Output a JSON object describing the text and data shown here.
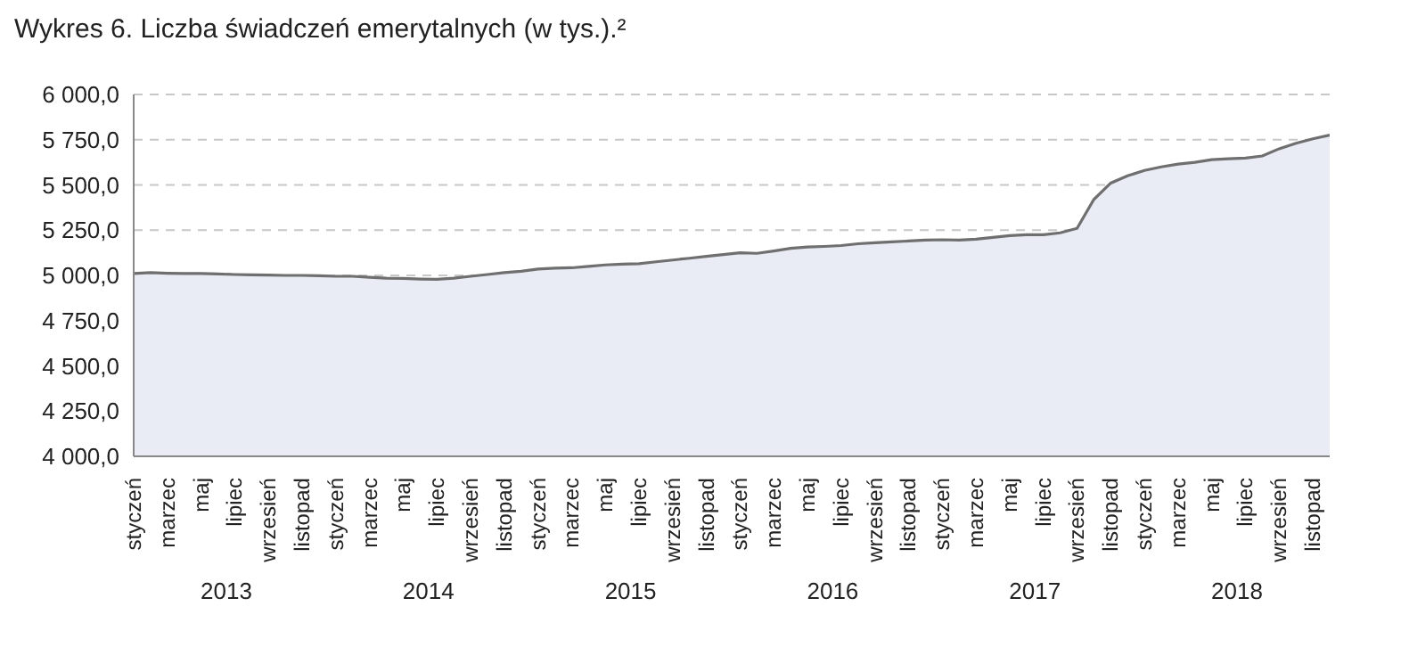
{
  "chart_data": {
    "type": "area",
    "title": "Wykres 6. Liczba świadczeń emerytalnych (w tys.).²",
    "categories": [
      "styczeń",
      null,
      "marzec",
      null,
      "maj",
      null,
      "lipiec",
      null,
      "wrzesień",
      null,
      "listopad",
      null,
      "styczeń",
      null,
      "marzec",
      null,
      "maj",
      null,
      "lipiec",
      null,
      "wrzesień",
      null,
      "listopad",
      null,
      "styczeń",
      null,
      "marzec",
      null,
      "maj",
      null,
      "lipiec",
      null,
      "wrzesień",
      null,
      "listopad",
      null,
      "styczeń",
      null,
      "marzec",
      null,
      "maj",
      null,
      "lipiec",
      null,
      "wrzesień",
      null,
      "listopad",
      null,
      "styczeń",
      null,
      "marzec",
      null,
      "maj",
      null,
      "lipiec",
      null,
      "wrzesień",
      null,
      "listopad",
      null,
      "styczeń",
      null,
      "marzec",
      null,
      "maj",
      null,
      "lipiec",
      null,
      "wrzesień",
      null,
      "listopad",
      null
    ],
    "series": [
      {
        "color": "#6f6f6f",
        "values": [
          5010,
          5015,
          5012,
          5010,
          5010,
          5008,
          5005,
          5003,
          5002,
          5000,
          5000,
          4998,
          4995,
          4995,
          4990,
          4985,
          4983,
          4980,
          4978,
          4985,
          4995,
          5005,
          5015,
          5023,
          5035,
          5040,
          5042,
          5050,
          5058,
          5062,
          5065,
          5075,
          5085,
          5095,
          5105,
          5115,
          5125,
          5122,
          5135,
          5150,
          5157,
          5160,
          5165,
          5175,
          5180,
          5185,
          5190,
          5195,
          5197,
          5195,
          5200,
          5210,
          5220,
          5225,
          5225,
          5235,
          5260,
          5420,
          5510,
          5550,
          5580,
          5600,
          5615,
          5625,
          5640,
          5645,
          5648,
          5660,
          5700,
          5730,
          5755,
          5775
        ]
      }
    ],
    "ylim": [
      4000,
      6000
    ],
    "yticks": [
      {
        "value": 4000,
        "label": "4 000,0"
      },
      {
        "value": 4250,
        "label": "4 250,0"
      },
      {
        "value": 4500,
        "label": "4 500,0"
      },
      {
        "value": 4750,
        "label": "4 750,0"
      },
      {
        "value": 5000,
        "label": "5 000,0"
      },
      {
        "value": 5250,
        "label": "5 250,0"
      },
      {
        "value": 5500,
        "label": "5 500,0"
      },
      {
        "value": 5750,
        "label": "5 750,0"
      },
      {
        "value": 6000,
        "label": "6 000,0"
      }
    ],
    "annotations": [
      "2013",
      "2014",
      "2015",
      "2016",
      "2017",
      "2018"
    ],
    "grid": "y",
    "legend": false
  }
}
